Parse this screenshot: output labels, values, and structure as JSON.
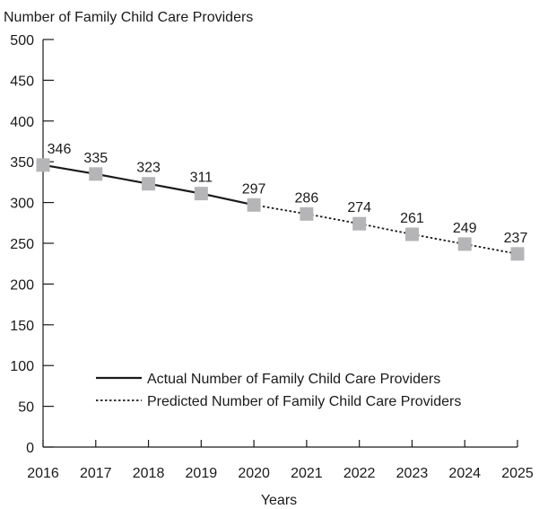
{
  "chart_data": {
    "type": "line",
    "title": "",
    "ylabel": "Number of Family Child Care Providers",
    "xlabel": "Years",
    "x": [
      "2016",
      "2017",
      "2018",
      "2019",
      "2020",
      "2021",
      "2022",
      "2023",
      "2024",
      "2025"
    ],
    "ylim": [
      0,
      500
    ],
    "yticks": [
      "0",
      "50",
      "100",
      "150",
      "200",
      "250",
      "300",
      "350",
      "400",
      "450",
      "500"
    ],
    "grid": false,
    "legend_position": "bottom-right",
    "marker_color": "#b5b5b8",
    "line_color": "#1a1a1a",
    "series": [
      {
        "name": "Actual Number of Family Child Care Providers",
        "style": "solid",
        "points": [
          {
            "x": "2016",
            "y": 346
          },
          {
            "x": "2017",
            "y": 335
          },
          {
            "x": "2018",
            "y": 323
          },
          {
            "x": "2019",
            "y": 311
          },
          {
            "x": "2020",
            "y": 297
          }
        ]
      },
      {
        "name": "Predicted Number of Family Child Care Providers",
        "style": "dotted",
        "points": [
          {
            "x": "2020",
            "y": 297
          },
          {
            "x": "2021",
            "y": 286
          },
          {
            "x": "2022",
            "y": 274
          },
          {
            "x": "2023",
            "y": 261
          },
          {
            "x": "2024",
            "y": 249
          },
          {
            "x": "2025",
            "y": 237
          }
        ]
      }
    ],
    "data_labels": [
      {
        "x": "2016",
        "y": 346,
        "text": "346"
      },
      {
        "x": "2017",
        "y": 335,
        "text": "335"
      },
      {
        "x": "2018",
        "y": 323,
        "text": "323"
      },
      {
        "x": "2019",
        "y": 311,
        "text": "311"
      },
      {
        "x": "2020",
        "y": 297,
        "text": "297"
      },
      {
        "x": "2021",
        "y": 286,
        "text": "286"
      },
      {
        "x": "2022",
        "y": 274,
        "text": "274"
      },
      {
        "x": "2023",
        "y": 261,
        "text": "261"
      },
      {
        "x": "2024",
        "y": 249,
        "text": "249"
      },
      {
        "x": "2025",
        "y": 237,
        "text": "237"
      }
    ]
  }
}
